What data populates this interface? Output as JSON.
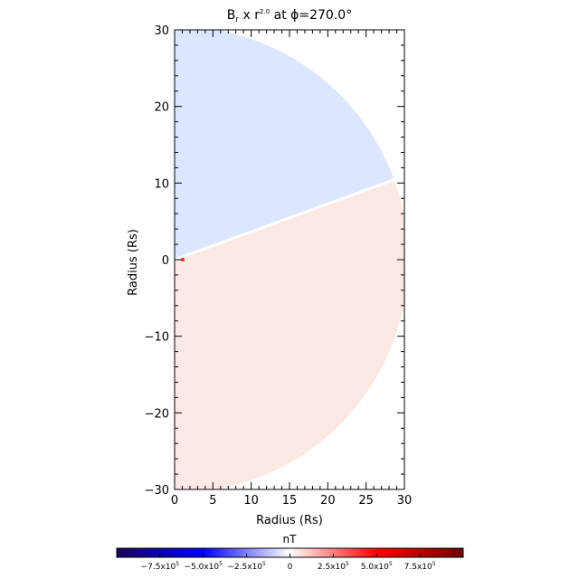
{
  "chart_data": {
    "type": "heatmap",
    "title": {
      "prefix": "B",
      "subscript": "r",
      "middle": " x r",
      "superscript": "2.0",
      "suffix": " at ϕ=270.0°"
    },
    "xlabel": "Radius (Rs)",
    "ylabel": "Radius (Rs)",
    "xlim": [
      0,
      30
    ],
    "ylim": [
      -30,
      30
    ],
    "x_ticks": [
      0,
      5,
      10,
      15,
      20,
      25,
      30
    ],
    "y_ticks": [
      30,
      20,
      10,
      0,
      -10,
      -20,
      -30
    ],
    "domain_shape": "half-disk",
    "outer_radius": 30.5,
    "current_sheet_angle_deg": 20,
    "regions": [
      {
        "name": "negative",
        "sign": "negative",
        "color": "#dce6ff",
        "angle_range_deg": [
          20,
          90
        ]
      },
      {
        "name": "positive",
        "sign": "positive",
        "color": "#fde9e4",
        "angle_range_deg": [
          -90,
          20
        ]
      }
    ],
    "colorbar": {
      "label": "nT",
      "range": [
        -1000000,
        1000000
      ],
      "colors": [
        "#1a005a",
        "#0000ff",
        "#ffffff",
        "#ff0000",
        "#6e0000"
      ],
      "tick_values": [
        -750000,
        -500000,
        -250000,
        0,
        250000,
        500000,
        750000
      ],
      "tick_labels": [
        {
          "mantissa": "−7.5x10",
          "exponent": "5"
        },
        {
          "mantissa": "−5.0x10",
          "exponent": "5"
        },
        {
          "mantissa": "−2.5x10",
          "exponent": "5"
        },
        {
          "mantissa": "0",
          "exponent": ""
        },
        {
          "mantissa": "2.5x10",
          "exponent": "5"
        },
        {
          "mantissa": "5.0x10",
          "exponent": "5"
        },
        {
          "mantissa": "7.5x10",
          "exponent": "5"
        }
      ]
    }
  }
}
